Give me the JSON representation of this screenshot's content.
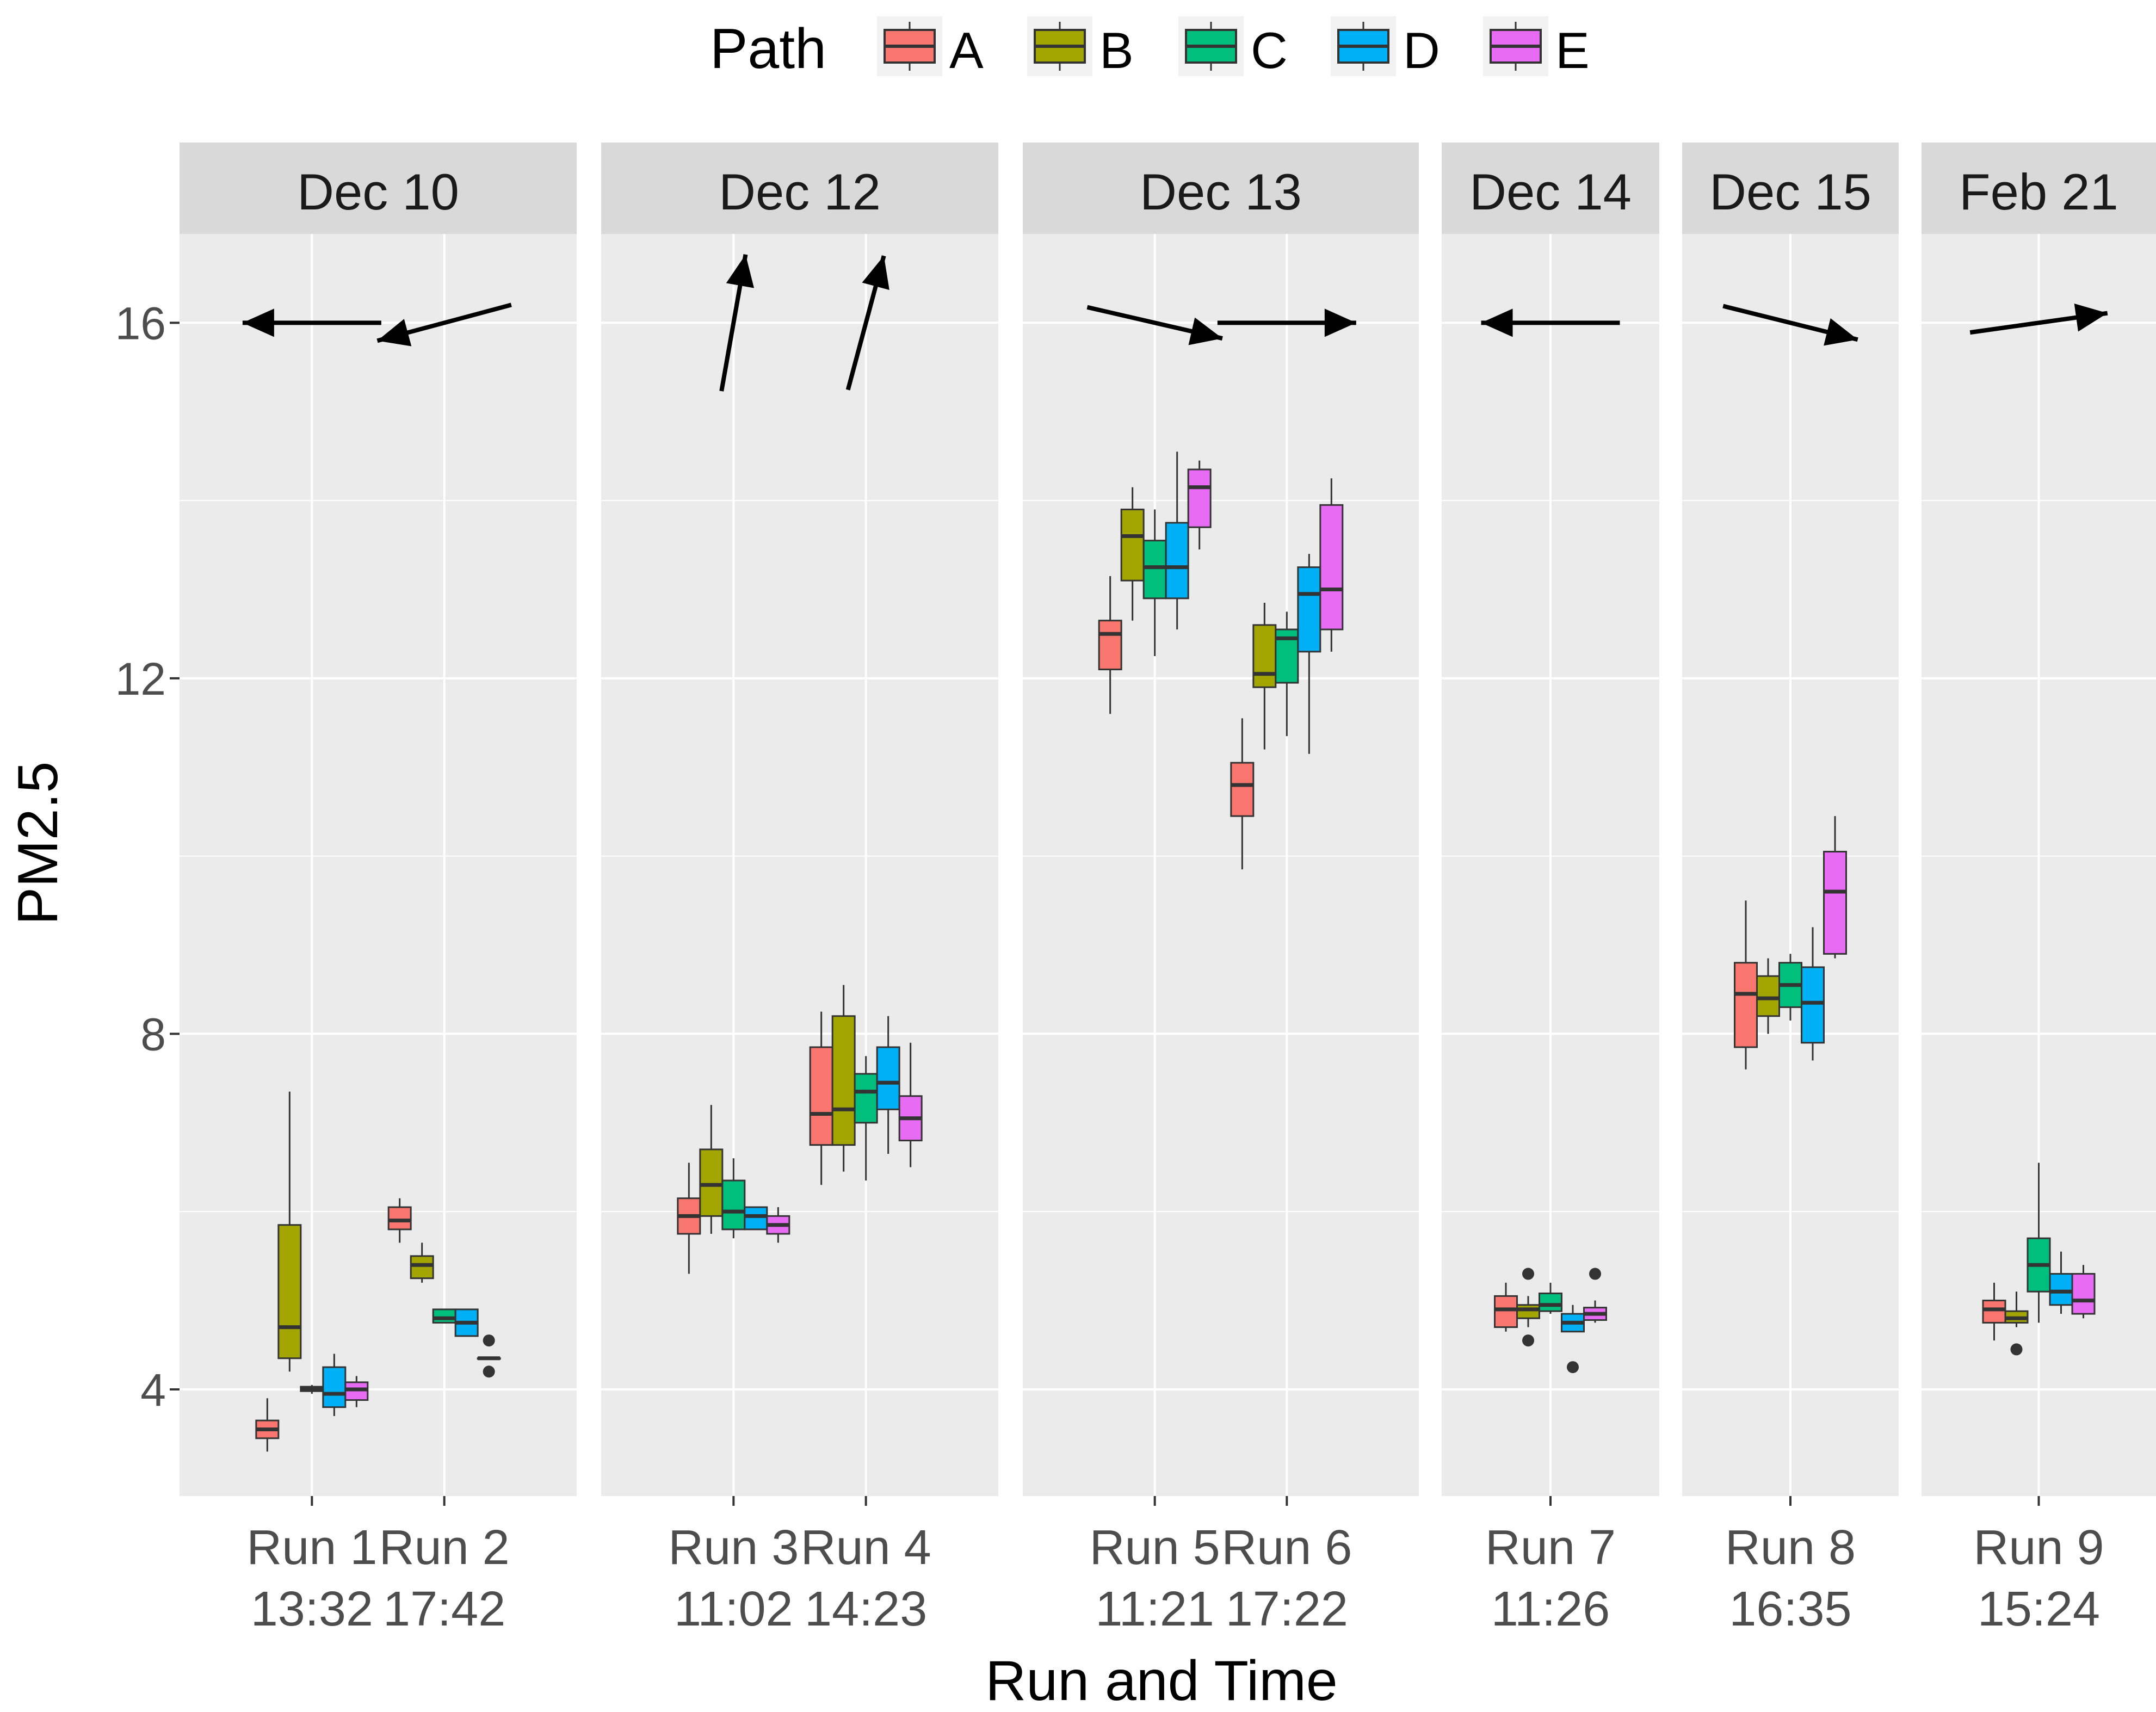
{
  "chart_data": {
    "type": "boxplot",
    "title": "",
    "xlabel": "Run and Time",
    "ylabel": "PM2.5",
    "ylim": [
      2.8,
      17.0
    ],
    "yticks": [
      4,
      8,
      12,
      16
    ],
    "grid": true,
    "legend": {
      "title": "Path",
      "position": "top",
      "entries": [
        "A",
        "B",
        "C",
        "D",
        "E"
      ]
    },
    "colors": {
      "A": "#F8766D",
      "B": "#A3A500",
      "C": "#00BF7D",
      "D": "#00B0F6",
      "E": "#E76BF3"
    },
    "panel_bg": "#EBEBEB",
    "strip_bg": "#D9D9D9",
    "facets": [
      {
        "label": "Dec 10",
        "runs": [
          {
            "run": "Run 1",
            "time": "13:32",
            "wind_direction_deg": 180,
            "boxes": [
              {
                "path": "A",
                "min": 3.3,
                "q1": 3.45,
                "median": 3.55,
                "q3": 3.65,
                "max": 3.9,
                "outliers": []
              },
              {
                "path": "B",
                "min": 4.2,
                "q1": 4.35,
                "median": 4.7,
                "q3": 5.85,
                "max": 7.35,
                "outliers": []
              },
              {
                "path": "C",
                "min": 3.95,
                "q1": 3.98,
                "median": 4.0,
                "q3": 4.03,
                "max": 4.05,
                "outliers": []
              },
              {
                "path": "D",
                "min": 3.7,
                "q1": 3.8,
                "median": 3.95,
                "q3": 4.25,
                "max": 4.4,
                "outliers": []
              },
              {
                "path": "E",
                "min": 3.8,
                "q1": 3.88,
                "median": 4.0,
                "q3": 4.08,
                "max": 4.15,
                "outliers": []
              }
            ]
          },
          {
            "run": "Run 2",
            "time": "17:42",
            "wind_direction_deg": 195,
            "boxes": [
              {
                "path": "A",
                "min": 5.65,
                "q1": 5.8,
                "median": 5.9,
                "q3": 6.05,
                "max": 6.15,
                "outliers": []
              },
              {
                "path": "B",
                "min": 5.2,
                "q1": 5.25,
                "median": 5.4,
                "q3": 5.5,
                "max": 5.65,
                "outliers": []
              },
              {
                "path": "C",
                "min": 4.75,
                "q1": 4.75,
                "median": 4.8,
                "q3": 4.9,
                "max": 4.9,
                "outliers": []
              },
              {
                "path": "D",
                "min": 4.6,
                "q1": 4.6,
                "median": 4.75,
                "q3": 4.9,
                "max": 4.9,
                "outliers": []
              },
              {
                "path": "E",
                "min": 4.35,
                "q1": 4.35,
                "median": 4.35,
                "q3": 4.35,
                "max": 4.35,
                "outliers": [
                  4.55,
                  4.2
                ]
              }
            ]
          }
        ]
      },
      {
        "label": "Dec 12",
        "runs": [
          {
            "run": "Run 3",
            "time": "11:02",
            "wind_direction_deg": 80,
            "boxes": [
              {
                "path": "A",
                "min": 5.3,
                "q1": 5.75,
                "median": 5.95,
                "q3": 6.15,
                "max": 6.55,
                "outliers": []
              },
              {
                "path": "B",
                "min": 5.75,
                "q1": 5.95,
                "median": 6.3,
                "q3": 6.7,
                "max": 7.2,
                "outliers": []
              },
              {
                "path": "C",
                "min": 5.7,
                "q1": 5.8,
                "median": 6.0,
                "q3": 6.35,
                "max": 6.6,
                "outliers": []
              },
              {
                "path": "D",
                "min": 5.8,
                "q1": 5.8,
                "median": 5.95,
                "q3": 6.05,
                "max": 6.05,
                "outliers": []
              },
              {
                "path": "E",
                "min": 5.65,
                "q1": 5.75,
                "median": 5.85,
                "q3": 5.95,
                "max": 6.05,
                "outliers": []
              }
            ]
          },
          {
            "run": "Run 4",
            "time": "14:23",
            "wind_direction_deg": 75,
            "boxes": [
              {
                "path": "A",
                "min": 6.3,
                "q1": 6.75,
                "median": 7.1,
                "q3": 7.85,
                "max": 8.25,
                "outliers": []
              },
              {
                "path": "B",
                "min": 6.45,
                "q1": 6.75,
                "median": 7.15,
                "q3": 8.2,
                "max": 8.55,
                "outliers": []
              },
              {
                "path": "C",
                "min": 6.35,
                "q1": 7.0,
                "median": 7.35,
                "q3": 7.55,
                "max": 7.75,
                "outliers": []
              },
              {
                "path": "D",
                "min": 6.65,
                "q1": 7.15,
                "median": 7.45,
                "q3": 7.85,
                "max": 8.2,
                "outliers": []
              },
              {
                "path": "E",
                "min": 6.5,
                "q1": 6.8,
                "median": 7.05,
                "q3": 7.3,
                "max": 7.9,
                "outliers": []
              }
            ]
          }
        ]
      },
      {
        "label": "Dec 13",
        "runs": [
          {
            "run": "Run 5",
            "time": "11:21",
            "wind_direction_deg": -13,
            "boxes": [
              {
                "path": "A",
                "min": 11.6,
                "q1": 12.1,
                "median": 12.5,
                "q3": 12.65,
                "max": 13.15,
                "outliers": []
              },
              {
                "path": "B",
                "min": 12.65,
                "q1": 13.1,
                "median": 13.6,
                "q3": 13.9,
                "max": 14.15,
                "outliers": []
              },
              {
                "path": "C",
                "min": 12.25,
                "q1": 12.9,
                "median": 13.25,
                "q3": 13.55,
                "max": 13.9,
                "outliers": []
              },
              {
                "path": "D",
                "min": 12.55,
                "q1": 12.9,
                "median": 13.25,
                "q3": 13.75,
                "max": 14.55,
                "outliers": []
              },
              {
                "path": "E",
                "min": 13.45,
                "q1": 13.7,
                "median": 14.15,
                "q3": 14.35,
                "max": 14.45,
                "outliers": []
              }
            ]
          },
          {
            "run": "Run 6",
            "time": "17:22",
            "wind_direction_deg": 0,
            "boxes": [
              {
                "path": "A",
                "min": 9.85,
                "q1": 10.45,
                "median": 10.8,
                "q3": 11.05,
                "max": 11.55,
                "outliers": []
              },
              {
                "path": "B",
                "min": 11.2,
                "q1": 11.9,
                "median": 12.05,
                "q3": 12.6,
                "max": 12.85,
                "outliers": []
              },
              {
                "path": "C",
                "min": 11.35,
                "q1": 11.95,
                "median": 12.45,
                "q3": 12.55,
                "max": 12.75,
                "outliers": []
              },
              {
                "path": "D",
                "min": 11.15,
                "q1": 12.3,
                "median": 12.95,
                "q3": 13.25,
                "max": 13.4,
                "outliers": []
              },
              {
                "path": "E",
                "min": 12.3,
                "q1": 12.55,
                "median": 13.0,
                "q3": 13.95,
                "max": 14.25,
                "outliers": []
              }
            ]
          }
        ]
      },
      {
        "label": "Dec 14",
        "runs": [
          {
            "run": "Run 7",
            "time": "11:26",
            "wind_direction_deg": 180,
            "boxes": [
              {
                "path": "A",
                "min": 4.65,
                "q1": 4.7,
                "median": 4.9,
                "q3": 5.05,
                "max": 5.2,
                "outliers": []
              },
              {
                "path": "B",
                "min": 4.7,
                "q1": 4.8,
                "median": 4.9,
                "q3": 4.95,
                "max": 5.05,
                "outliers": [
                  5.3,
                  4.55
                ]
              },
              {
                "path": "C",
                "min": 4.85,
                "q1": 4.88,
                "median": 4.95,
                "q3": 5.08,
                "max": 5.2,
                "outliers": []
              },
              {
                "path": "D",
                "min": 4.65,
                "q1": 4.65,
                "median": 4.75,
                "q3": 4.85,
                "max": 4.95,
                "outliers": [
                  4.25
                ]
              },
              {
                "path": "E",
                "min": 4.75,
                "q1": 4.78,
                "median": 4.85,
                "q3": 4.92,
                "max": 5.0,
                "outliers": [
                  5.3
                ]
              }
            ]
          }
        ]
      },
      {
        "label": "Dec 15",
        "runs": [
          {
            "run": "Run 8",
            "time": "16:35",
            "wind_direction_deg": -14,
            "boxes": [
              {
                "path": "A",
                "min": 7.6,
                "q1": 7.85,
                "median": 8.45,
                "q3": 8.8,
                "max": 9.5,
                "outliers": []
              },
              {
                "path": "B",
                "min": 8.0,
                "q1": 8.2,
                "median": 8.4,
                "q3": 8.65,
                "max": 8.85,
                "outliers": []
              },
              {
                "path": "C",
                "min": 8.15,
                "q1": 8.3,
                "median": 8.55,
                "q3": 8.8,
                "max": 8.9,
                "outliers": []
              },
              {
                "path": "D",
                "min": 7.7,
                "q1": 7.9,
                "median": 8.35,
                "q3": 8.75,
                "max": 9.2,
                "outliers": []
              },
              {
                "path": "E",
                "min": 8.85,
                "q1": 8.9,
                "median": 9.6,
                "q3": 10.05,
                "max": 10.45,
                "outliers": []
              }
            ]
          }
        ]
      },
      {
        "label": "Feb 21",
        "runs": [
          {
            "run": "Run 9",
            "time": "15:24",
            "wind_direction_deg": 8,
            "boxes": [
              {
                "path": "A",
                "min": 4.55,
                "q1": 4.75,
                "median": 4.9,
                "q3": 5.0,
                "max": 5.2,
                "outliers": []
              },
              {
                "path": "B",
                "min": 4.7,
                "q1": 4.75,
                "median": 4.8,
                "q3": 4.88,
                "max": 5.1,
                "outliers": [
                  4.45
                ]
              },
              {
                "path": "C",
                "min": 4.75,
                "q1": 5.1,
                "median": 5.4,
                "q3": 5.7,
                "max": 6.55,
                "outliers": []
              },
              {
                "path": "D",
                "min": 4.85,
                "q1": 4.95,
                "median": 5.1,
                "q3": 5.3,
                "max": 5.55,
                "outliers": []
              },
              {
                "path": "E",
                "min": 4.8,
                "q1": 4.85,
                "median": 5.0,
                "q3": 5.3,
                "max": 5.4,
                "outliers": []
              }
            ]
          }
        ]
      }
    ]
  }
}
